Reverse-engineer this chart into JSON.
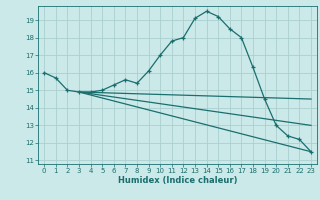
{
  "xlabel": "Humidex (Indice chaleur)",
  "ylabel": "",
  "background_color": "#cce9e9",
  "grid_color": "#aacfcf",
  "line_color": "#1a6e6e",
  "xlim": [
    -0.5,
    23.5
  ],
  "ylim": [
    10.8,
    19.8
  ],
  "yticks": [
    11,
    12,
    13,
    14,
    15,
    16,
    17,
    18,
    19
  ],
  "xticks": [
    0,
    1,
    2,
    3,
    4,
    5,
    6,
    7,
    8,
    9,
    10,
    11,
    12,
    13,
    14,
    15,
    16,
    17,
    18,
    19,
    20,
    21,
    22,
    23
  ],
  "curve1_x": [
    0,
    1,
    2,
    3,
    4,
    5,
    6,
    7,
    8,
    9,
    10,
    11,
    12,
    13,
    14,
    15,
    16,
    17,
    18,
    19,
    20,
    21,
    22,
    23
  ],
  "curve1_y": [
    16.0,
    15.7,
    15.0,
    14.9,
    14.9,
    15.0,
    15.3,
    15.6,
    15.4,
    16.1,
    17.0,
    17.8,
    18.0,
    19.1,
    19.5,
    19.2,
    18.5,
    18.0,
    16.3,
    14.5,
    13.0,
    12.4,
    12.2,
    11.5
  ],
  "curve2_x": [
    3,
    23
  ],
  "curve2_y": [
    14.9,
    14.5
  ],
  "curve3_x": [
    3,
    23
  ],
  "curve3_y": [
    14.9,
    13.0
  ],
  "curve4_x": [
    3,
    23
  ],
  "curve4_y": [
    14.9,
    11.5
  ]
}
